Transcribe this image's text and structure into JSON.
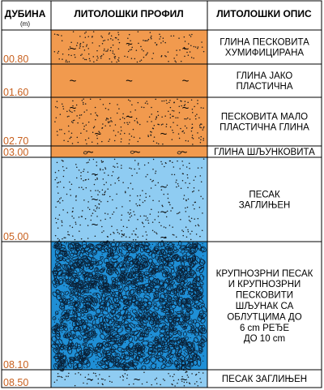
{
  "header": {
    "depth": "ДУБИНА",
    "depth_unit": "(m)",
    "profile": "ЛИТОЛОШКИ ПРОФИЛ",
    "description": "ЛИТОЛОШКИ ОПИС"
  },
  "layers": [
    {
      "from": 0.0,
      "to": 0.8,
      "depth_label": "00.80",
      "pattern": "orange-sand-tilde",
      "color": "#f19a4e",
      "description": [
        "ГЛИНА ПЕСКОВИТА",
        "ХУМИФИЦИРАНА"
      ]
    },
    {
      "from": 0.8,
      "to": 1.6,
      "depth_label": "01.60",
      "pattern": "orange-tilde",
      "color": "#f19a4e",
      "description": [
        "ГЛИНА ЈАКО",
        "ПЛАСТИЧНА"
      ]
    },
    {
      "from": 1.6,
      "to": 2.7,
      "depth_label": "02.70",
      "pattern": "orange-sand-tilde",
      "color": "#f19a4e",
      "description": [
        "ПЕСКОВИТА МАЛО",
        "ПЛАСТИЧНА ГЛИНА"
      ]
    },
    {
      "from": 2.7,
      "to": 3.0,
      "depth_label": "03.00",
      "pattern": "orange-gravel-tilde",
      "color": "#f19a4e",
      "description": [
        "ГЛИНА ШЉУНКОВИТА"
      ]
    },
    {
      "from": 3.0,
      "to": 5.0,
      "depth_label": "05.00",
      "pattern": "lightblue-sand-tilde",
      "color": "#8fccf2",
      "description": [
        "ПЕСАК",
        "ЗАГЛИЊЕН"
      ]
    },
    {
      "from": 5.0,
      "to": 8.1,
      "depth_label": "08.10",
      "pattern": "blue-gravel",
      "color": "#1f8fd6",
      "description": [
        "КРУПНОЗРНИ ПЕСАК",
        "И КРУПНОЗРНИ",
        "ПЕСКОВИТИ",
        "ШЉУНАК СА",
        "ОБЛУТЦИМА ДО",
        "6 cm РЕЂЕ",
        "ДО 10 cm"
      ]
    },
    {
      "from": 8.1,
      "to": 8.5,
      "depth_label": "08.50",
      "pattern": "lightblue-sand-tilde",
      "color": "#8fccf2",
      "description": [
        "ПЕСАК ЗАГЛИЊЕН"
      ]
    }
  ],
  "colors": {
    "depth_text": "#c8601e",
    "clay": "#f19a4e",
    "sand": "#8fccf2",
    "gravel_bed": "#1f8fd6"
  }
}
